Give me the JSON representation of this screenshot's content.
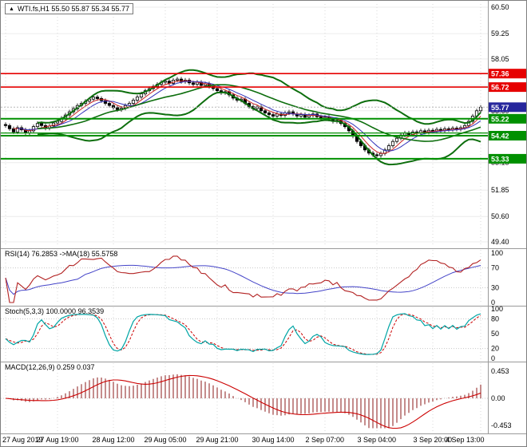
{
  "colors": {
    "background": "#ffffff",
    "candle_up": "#ffffff",
    "candle_down": "#000000",
    "candle_outline": "#000000",
    "band": "#0d6e0d",
    "resistance": "#e60000",
    "support": "#009000",
    "price_tag": "#26269c",
    "ma_fast": "#cc2222",
    "ma_slow": "#3333bb",
    "rsi": "#b22222",
    "rsi_ma": "#4444c8",
    "stoch_main": "#00a5a5",
    "stoch_signal": "#cc0000",
    "macd_hist": "#8b1a1a",
    "macd_signal": "#cc0000"
  },
  "header": {
    "icon": "▲",
    "symbol_info": "WTI.fs,H1 55.50 55.87 55.34 55.77"
  },
  "chart_data": [
    {
      "type": "candlestick",
      "title": "WTI.fs,H1",
      "ylim": [
        49.4,
        60.5
      ],
      "y_ticks": [
        60.5,
        59.25,
        58.05,
        56.8,
        55.6,
        54.4,
        53.15,
        51.85,
        50.6,
        49.4
      ],
      "x_labels": [
        "27 Aug 2019",
        "27 Aug 19:00",
        "28 Aug 12:00",
        "29 Aug 05:00",
        "29 Aug 21:00",
        "30 Aug 14:00",
        "2 Sep 07:00",
        "3 Sep 04:00",
        "3 Sep 20:00",
        "4 Sep 13:00"
      ],
      "x_label_bars": [
        0,
        13,
        27,
        40,
        53,
        67,
        80,
        93,
        107,
        119
      ],
      "first_open": 54.95,
      "closes": [
        54.9,
        54.75,
        54.6,
        54.8,
        54.7,
        54.55,
        54.65,
        54.85,
        55.0,
        54.9,
        54.78,
        54.88,
        55.02,
        55.1,
        55.25,
        55.4,
        55.55,
        55.7,
        55.85,
        55.95,
        56.05,
        56.15,
        56.25,
        56.18,
        56.08,
        55.95,
        55.85,
        55.75,
        55.65,
        55.72,
        55.85,
        55.95,
        56.1,
        56.25,
        56.4,
        56.55,
        56.65,
        56.75,
        56.85,
        56.95,
        57.0,
        56.9,
        57.05,
        57.1,
        56.98,
        57.05,
        56.92,
        56.85,
        56.95,
        56.8,
        56.88,
        56.75,
        56.65,
        56.55,
        56.45,
        56.5,
        56.35,
        56.2,
        56.1,
        56.15,
        55.95,
        55.8,
        55.7,
        55.78,
        55.6,
        55.5,
        55.42,
        55.35,
        55.45,
        55.38,
        55.5,
        55.55,
        55.45,
        55.35,
        55.42,
        55.3,
        55.38,
        55.45,
        55.32,
        55.25,
        55.3,
        55.2,
        55.1,
        55.15,
        55.0,
        54.85,
        54.65,
        54.4,
        54.15,
        53.95,
        53.75,
        53.6,
        53.52,
        53.48,
        53.58,
        53.75,
        53.95,
        54.15,
        54.3,
        54.45,
        54.55,
        54.48,
        54.6,
        54.55,
        54.65,
        54.58,
        54.68,
        54.62,
        54.72,
        54.66,
        54.75,
        54.7,
        54.78,
        54.72,
        54.8,
        54.9,
        55.1,
        55.35,
        55.6,
        55.77
      ],
      "bands": {
        "period": 20,
        "deviation": 2
      },
      "overlays": [
        {
          "name": "ma-fast",
          "period": 5
        },
        {
          "name": "ma-slow",
          "period": 8
        }
      ],
      "levels": {
        "resistance": [
          57.36,
          56.72
        ],
        "support": [
          55.22,
          54.42,
          53.33
        ],
        "minor_support": [
          54.55
        ]
      },
      "last_price": 55.77,
      "ohlc": {
        "open": "55.50",
        "high": "55.87",
        "low": "55.34",
        "close": "55.77"
      }
    },
    {
      "type": "line",
      "name": "RSI",
      "label": "RSI(14) 76.2853  ->MA(18) 55.5758",
      "period": 14,
      "ma_period": 18,
      "last_values": {
        "rsi": "76.2853",
        "ma": "55.5758"
      },
      "ylim": [
        0,
        100
      ],
      "ticks": [
        100,
        70,
        30,
        0
      ],
      "levels": [
        70,
        30
      ]
    },
    {
      "type": "line",
      "name": "Stochastic",
      "label": "Stoch(5,3,3) 100.0000 96.3539",
      "params": [
        5,
        3,
        3
      ],
      "last_values": {
        "main": "100.0000",
        "signal": "96.3539"
      },
      "ylim": [
        0,
        100
      ],
      "ticks": [
        100,
        80,
        50,
        20,
        0
      ],
      "levels": [
        80,
        20
      ]
    },
    {
      "type": "macd",
      "name": "MACD",
      "label": "MACD(12,26,9) 0.259 0.037",
      "params": [
        12,
        26,
        9
      ],
      "last_values": {
        "macd": "0.259",
        "signal": "0.037"
      },
      "ticks": [
        "0.453",
        "0.00",
        "-0.453"
      ]
    }
  ]
}
